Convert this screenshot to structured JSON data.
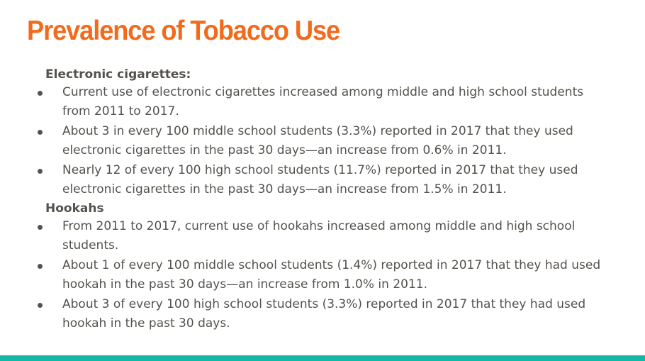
{
  "slide": {
    "title": "Prevalence of Tobacco Use",
    "title_color": "#f26b1d",
    "text_color": "#55524d",
    "accent_bar_color": "#14b8a6"
  },
  "sections": [
    {
      "heading": "Electronic cigarettes:",
      "bullets": [
        "Current use of electronic cigarettes increased among middle and high school students from 2011 to 2017.",
        "About 3 in every 100 middle school students (3.3%) reported in 2017 that they used electronic cigarettes in the past 30 days—an increase from 0.6% in 2011.",
        "Nearly 12 of every 100 high school students (11.7%) reported in 2017 that they used electronic cigarettes in the past 30 days—an increase from 1.5% in 2011."
      ]
    },
    {
      "heading": "Hookahs",
      "bullets": [
        "From 2011 to 2017, current use of hookahs increased among middle and high school students.",
        "About 1 of every 100 middle school students (1.4%) reported in 2017 that they had used hookah in the past 30 days—an increase from 1.0% in 2011.",
        "About 3 of every 100 high school students (3.3%) reported in 2017 that they had used hookah in the past 30 days."
      ]
    }
  ]
}
